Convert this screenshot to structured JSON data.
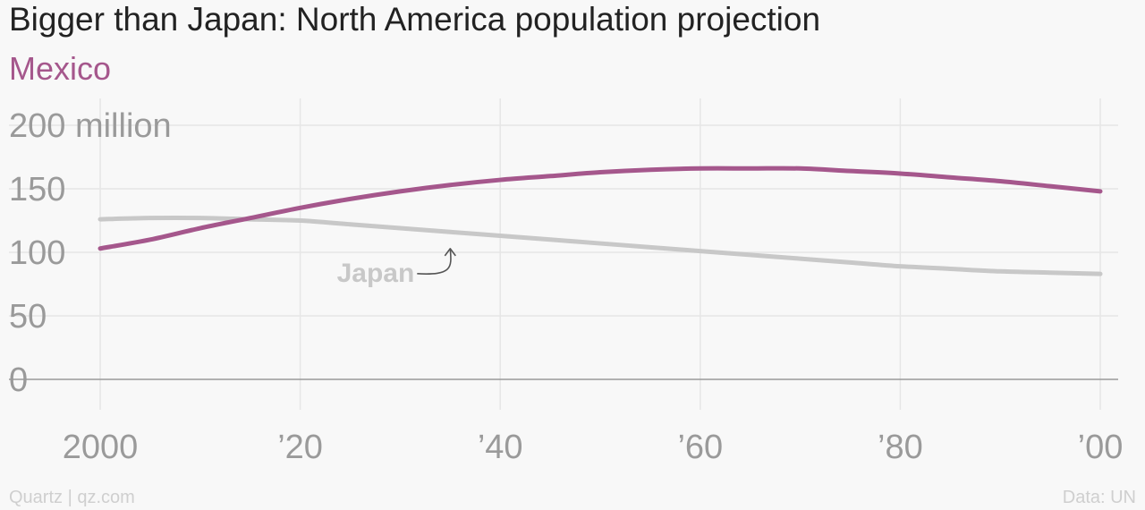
{
  "header": {
    "title": "Bigger than Japan: North America population projection",
    "subtitle": "Mexico"
  },
  "footer": {
    "source_left": "Quartz | qz.com",
    "source_right": "Data: UN"
  },
  "colors": {
    "mexico": "#a5578c",
    "japan": "#c8c8c8",
    "grid": "#e6e6e6",
    "axis": "#999999",
    "annotation_arrow": "#555555"
  },
  "chart_data": {
    "type": "line",
    "title": "Bigger than Japan: North America population projection",
    "subtitle": "Mexico",
    "xlabel": "",
    "ylabel": "",
    "xlim": [
      2000,
      2100
    ],
    "ylim": [
      0,
      200
    ],
    "x_ticks": [
      2000,
      2020,
      2040,
      2060,
      2080,
      2100
    ],
    "x_tick_labels": [
      "2000",
      "’20",
      "’40",
      "’60",
      "’80",
      "’00"
    ],
    "y_ticks": [
      0,
      50,
      100,
      150,
      200
    ],
    "y_tick_labels": [
      "0",
      "50",
      "100",
      "150",
      "200 million"
    ],
    "grid": true,
    "x": [
      2000,
      2005,
      2010,
      2015,
      2020,
      2025,
      2030,
      2035,
      2040,
      2045,
      2050,
      2055,
      2060,
      2065,
      2070,
      2075,
      2080,
      2085,
      2090,
      2095,
      2100
    ],
    "series": [
      {
        "name": "Mexico",
        "color": "#a5578c",
        "values": [
          103,
          110,
          119,
          127,
          135,
          142,
          148,
          153,
          157,
          160,
          163,
          165,
          166,
          166,
          166,
          164,
          162,
          159,
          156,
          152,
          148
        ]
      },
      {
        "name": "Japan",
        "color": "#c8c8c8",
        "values": [
          126,
          127,
          127,
          126,
          125,
          122,
          119,
          116,
          113,
          110,
          107,
          104,
          101,
          98,
          95,
          92,
          89,
          87,
          85,
          84,
          83
        ]
      }
    ],
    "annotations": [
      {
        "text": "Japan",
        "series": "Japan",
        "x": 2035,
        "y": 117
      }
    ]
  }
}
